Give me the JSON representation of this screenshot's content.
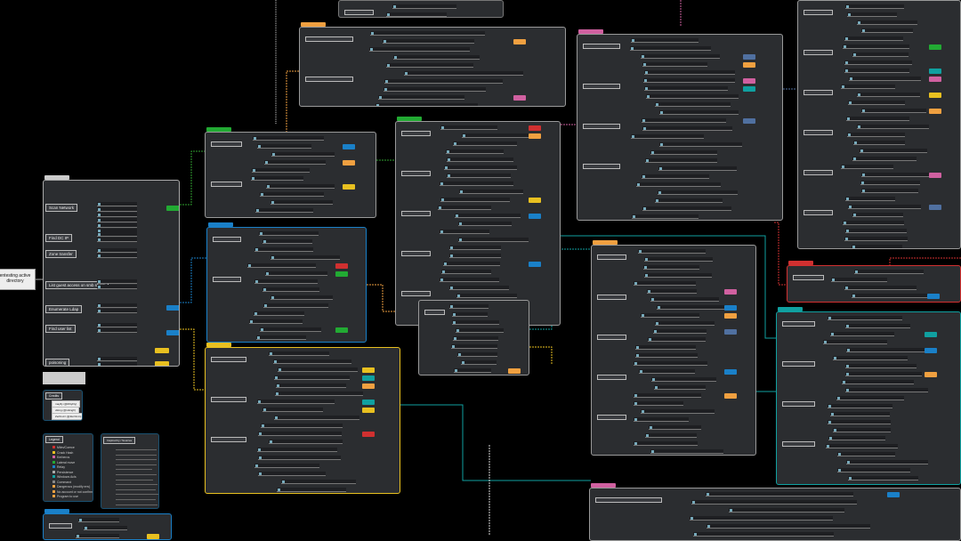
{
  "root": {
    "label": "entesting active directory"
  },
  "colors": {
    "green": "#22aa33",
    "pink": "#d060a0",
    "blue": "#1a80c8",
    "yellow": "#e8c020",
    "red": "#d03030",
    "teal": "#10a0a0",
    "orange": "#f0a040",
    "slate": "#5070a0"
  },
  "main_panel": {
    "branches": [
      "Scan Network",
      "Find DC IP",
      "Zone transfer",
      "List guest access on smb share",
      "Enumerate Ldap",
      "Find user list",
      "poisoning",
      "Coerce"
    ]
  },
  "credits": {
    "title": "Credits",
    "items": [
      "mayfly (@M4yFly)",
      "viking (@vikingfr)",
      "Zer0ruzz (@ZerOmin)"
    ]
  },
  "legend": {
    "title": "Legend",
    "items": [
      "Mitm/Coerce",
      "Crack Hash",
      "Kerberos",
      "Lateral move",
      "Relay",
      "Persistence",
      "Windows Acls",
      "Command",
      "Dangerous (modify env)",
      "No account or not confirmed",
      "Program to use"
    ]
  },
  "inspired": {
    "title": "Inspired by / Sources",
    "links_count_visible": 12
  }
}
